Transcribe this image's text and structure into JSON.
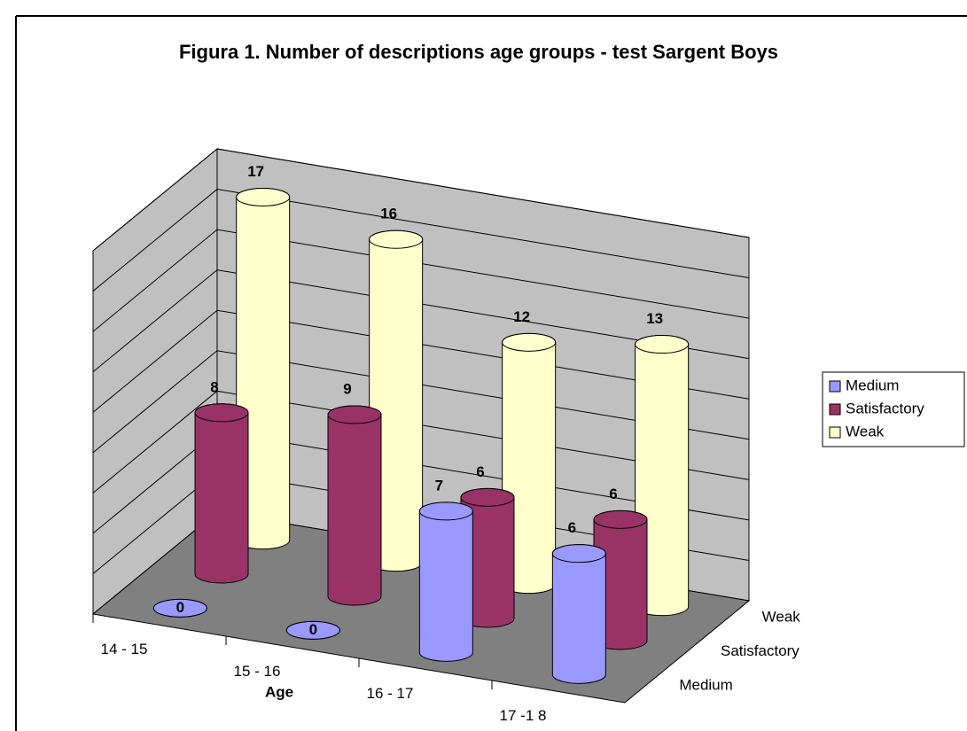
{
  "chart_data": {
    "type": "bar3d",
    "title": "Figura 1. Number of descriptions age groups - test Sargent Boys",
    "x_label": "Age",
    "categories": [
      "14 - 15",
      "15 - 16",
      "16 - 17",
      "17 -1 8"
    ],
    "series": [
      {
        "name": "Medium",
        "color": "#9999ff",
        "values": [
          0,
          0,
          7,
          6
        ]
      },
      {
        "name": "Satisfactory",
        "color": "#993366",
        "values": [
          8,
          9,
          6,
          6
        ]
      },
      {
        "name": "Weak",
        "color": "#ffffcc",
        "values": [
          17,
          16,
          12,
          13
        ]
      }
    ],
    "ylim": [
      0,
      18
    ],
    "yticks": [
      0,
      2,
      4,
      6,
      8,
      10,
      12,
      14,
      16,
      18
    ],
    "grid": true,
    "legend": "right"
  }
}
